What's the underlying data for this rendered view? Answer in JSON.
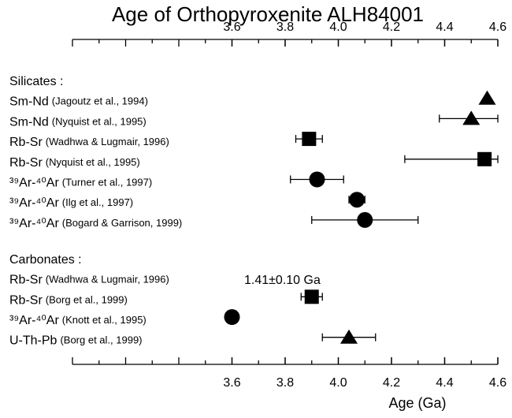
{
  "chart_data": {
    "type": "dot",
    "title": "Age of Orthopyroxenite ALH84001",
    "xlabel": "Age (Ga)",
    "xlim": [
      3.0,
      4.6
    ],
    "xticks": [
      3.6,
      3.8,
      {
        "value": 4,
        "label": "4.0"
      },
      4.2,
      4.4,
      4.6
    ],
    "color": "#000000",
    "groups": [
      {
        "name": "Silicates :",
        "rows": [
          {
            "method": "Sm-Nd",
            "citation": "(Jagoutz et al., 1994)",
            "marker": "triangle",
            "value": 4.56,
            "error": null
          },
          {
            "method": "Sm-Nd",
            "citation": "(Nyquist et al., 1995)",
            "marker": "triangle",
            "value": 4.5,
            "error": 0.12
          },
          {
            "method": "Rb-Sr",
            "citation": "(Wadhwa & Lugmair, 1996)",
            "marker": "square",
            "value": 3.89,
            "error": 0.05
          },
          {
            "method": "Rb-Sr",
            "citation": "(Nyquist et al., 1995)",
            "marker": "square",
            "value": 4.55,
            "error": 0.3
          },
          {
            "method": "³⁹Ar-⁴⁰Ar",
            "citation": "(Turner et al., 1997)",
            "marker": "circle",
            "value": 3.92,
            "error": 0.1
          },
          {
            "method": "³⁹Ar-⁴⁰Ar",
            "citation": "(Ilg et al., 1997)",
            "marker": "circle",
            "value": 4.07,
            "error": 0.03
          },
          {
            "method": "³⁹Ar-⁴⁰Ar",
            "citation": "(Bogard & Garrison, 1999)",
            "marker": "circle",
            "value": 4.1,
            "error": 0.2
          }
        ]
      },
      {
        "name": "Carbonates :",
        "rows": [
          {
            "method": "Rb-Sr",
            "citation": "(Wadhwa & Lugmair, 1996)",
            "marker": "square",
            "value": null,
            "error": null,
            "annotation": "1.41±0.10 Ga"
          },
          {
            "method": "Rb-Sr",
            "citation": "(Borg et al., 1999)",
            "marker": "square",
            "value": 3.9,
            "error": 0.04
          },
          {
            "method": "³⁹Ar-⁴⁰Ar",
            "citation": "(Knott et al., 1995)",
            "marker": "circle",
            "value": 3.6,
            "error": null
          },
          {
            "method": "U-Th-Pb",
            "citation": "(Borg et al., 1999)",
            "marker": "triangle",
            "value": 4.04,
            "error": 0.1
          }
        ]
      }
    ]
  }
}
